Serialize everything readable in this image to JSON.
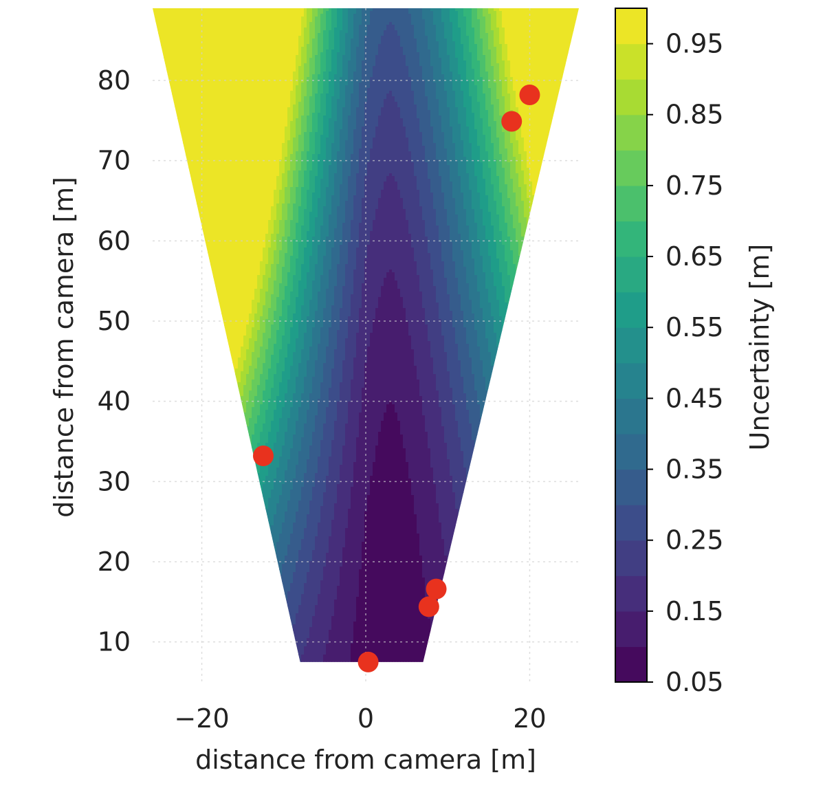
{
  "chart_data": {
    "type": "heatmap",
    "title": "",
    "xlabel": "distance from camera [m]",
    "ylabel": "distance from camera [m]",
    "xlim": [
      -26,
      26
    ],
    "ylim": [
      5,
      89
    ],
    "x_ticks": [
      -20,
      0,
      20
    ],
    "x_tick_labels": [
      "−20",
      "0",
      "20"
    ],
    "y_ticks": [
      10,
      20,
      30,
      40,
      50,
      60,
      70,
      80
    ],
    "y_tick_labels": [
      "10",
      "20",
      "30",
      "40",
      "50",
      "60",
      "70",
      "80"
    ],
    "grid": true,
    "colormap": "viridis",
    "field_of_view": {
      "bottom": [
        [
          -8,
          7.5
        ],
        [
          7,
          7.5
        ]
      ],
      "top": [
        [
          -26,
          89
        ],
        [
          26,
          89
        ]
      ]
    },
    "colorbar": {
      "label": "Uncertainty [m]",
      "range": [
        0.05,
        1.0
      ],
      "ticks": [
        0.05,
        0.15,
        0.25,
        0.35,
        0.45,
        0.55,
        0.65,
        0.75,
        0.85,
        0.95
      ],
      "tick_labels": [
        "0.05",
        "0.15",
        "0.25",
        "0.35",
        "0.45",
        "0.55",
        "0.65",
        "0.75",
        "0.85",
        "0.95"
      ],
      "levels": 19
    },
    "camera_points": [
      {
        "x": 0.3,
        "y": 7.5
      },
      {
        "x": 7.7,
        "y": 14.4
      },
      {
        "x": 8.6,
        "y": 16.6
      },
      {
        "x": -12.5,
        "y": 33.2
      },
      {
        "x": 17.8,
        "y": 74.9
      },
      {
        "x": 20.0,
        "y": 78.2
      }
    ],
    "point_color": "#e8321e"
  }
}
